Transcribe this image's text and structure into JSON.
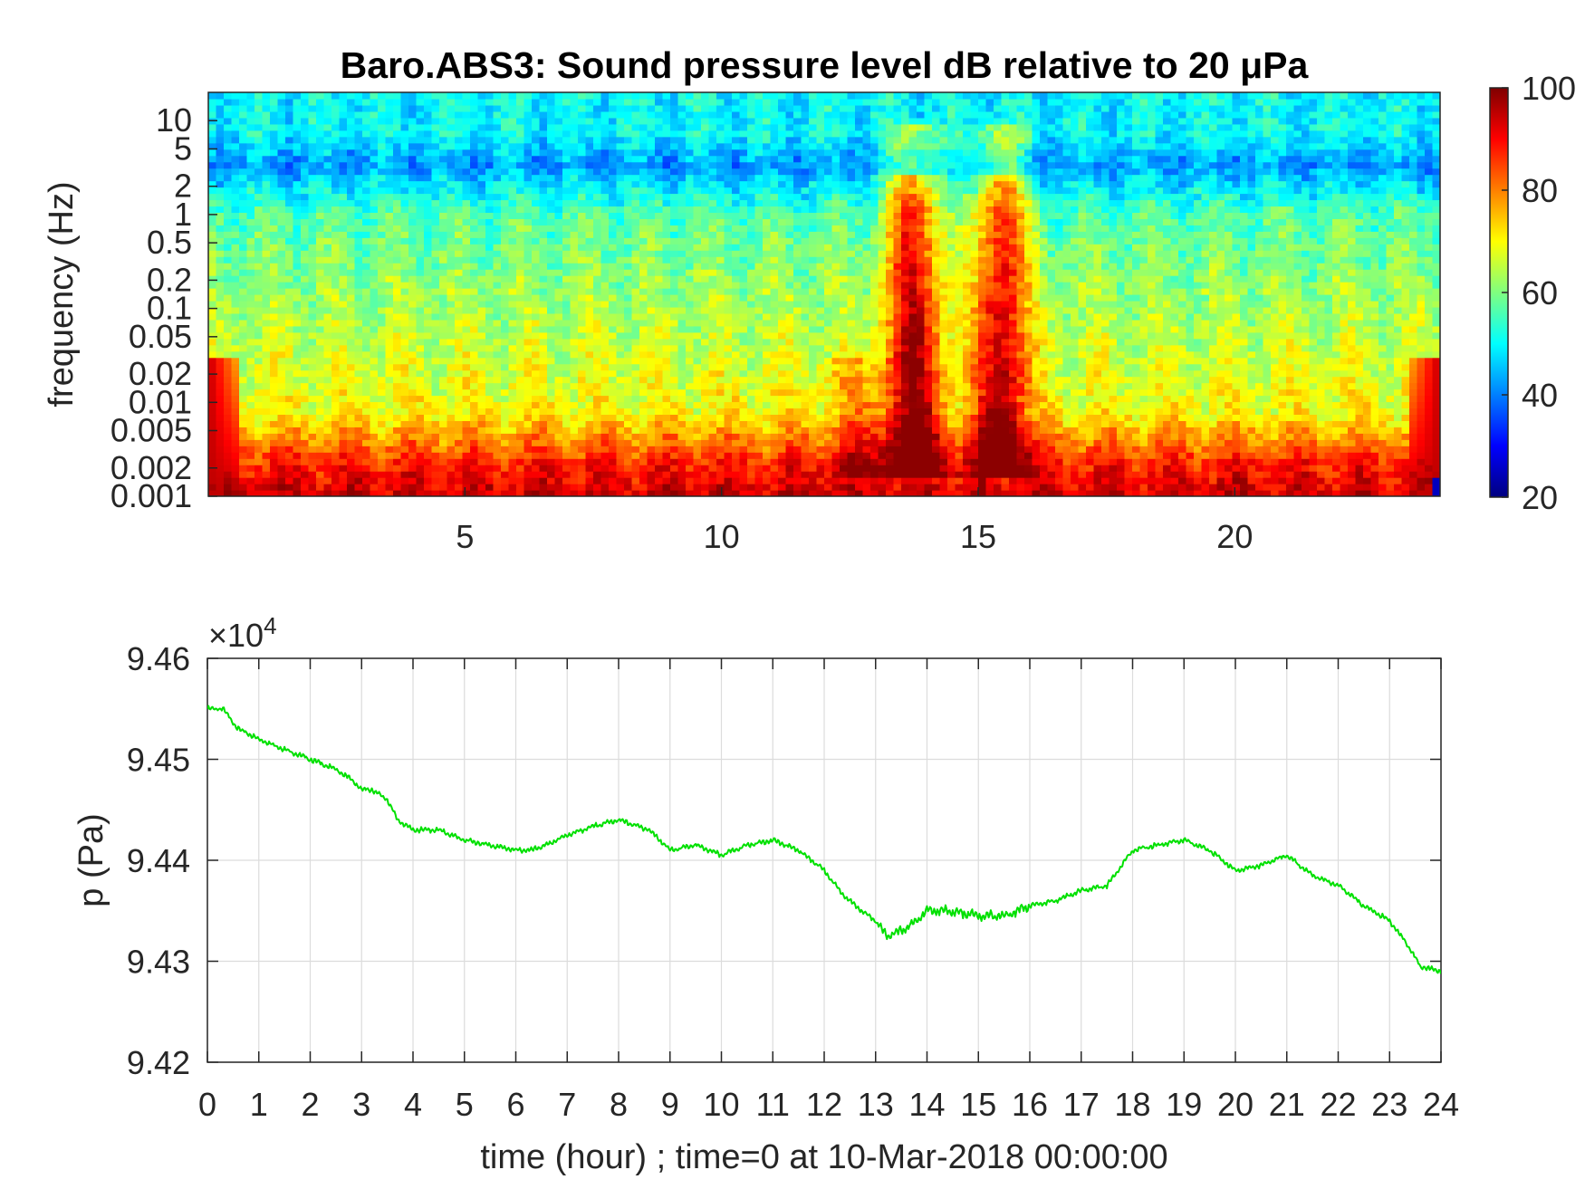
{
  "colors": {
    "pressure_line": "#00e000",
    "axis": "#262626",
    "grid": "#dcdcdc",
    "colormap": "jet"
  },
  "chart_data": [
    {
      "type": "heatmap",
      "title": "Baro.ABS3: Sound pressure level dB relative to 20 μPa",
      "xlabel": "",
      "ylabel": "frequency (Hz)",
      "xlim": [
        0,
        24
      ],
      "x_ticks": [
        "5",
        "10",
        "15",
        "20"
      ],
      "y_scale": "log",
      "ylim": [
        0.001,
        20
      ],
      "y_ticks": [
        "0.001",
        "0.002",
        "0.005",
        "0.01",
        "0.02",
        "0.05",
        "0.1",
        "0.2",
        "0.5",
        "1",
        "2",
        "5",
        "10"
      ],
      "colorbar": {
        "range": [
          20,
          100
        ],
        "ticks": [
          "20",
          "40",
          "60",
          "80",
          "100"
        ],
        "colormap": "jet"
      },
      "grid": false,
      "summary": {
        "low_freq_band_db": 90,
        "mid_freq_band_db": 70,
        "high_freq_band_db": 50,
        "strong_events_hours": [
          13.7,
          15.5
        ]
      }
    },
    {
      "type": "line",
      "title": "",
      "xlabel": "time (hour) ; time=0 at 10-Mar-2018 00:00:00",
      "ylabel": "p (Pa)",
      "y_exponent_label": "×10",
      "y_exponent_power": "4",
      "xlim": [
        0,
        24
      ],
      "ylim": [
        9.42,
        9.46
      ],
      "x_ticks": [
        "0",
        "1",
        "2",
        "3",
        "4",
        "5",
        "6",
        "7",
        "8",
        "9",
        "10",
        "11",
        "12",
        "13",
        "14",
        "15",
        "16",
        "17",
        "18",
        "19",
        "20",
        "21",
        "22",
        "23",
        "24"
      ],
      "y_ticks": [
        "9.42",
        "9.43",
        "9.44",
        "9.45",
        "9.46"
      ],
      "grid": true,
      "series": [
        {
          "color": "#00e000",
          "x": [
            0,
            0.3,
            0.6,
            1,
            1.5,
            2,
            2.5,
            2.8,
            3,
            3.2,
            3.5,
            3.7,
            4,
            4.5,
            5,
            5.5,
            6,
            6.3,
            6.6,
            7,
            7.3,
            7.6,
            8,
            8.3,
            8.6,
            9,
            9.5,
            10,
            10.5,
            11,
            11.5,
            12,
            12.3,
            12.6,
            13,
            13.2,
            13.5,
            13.8,
            14,
            14.4,
            15,
            15.5,
            16,
            16.5,
            17,
            17.5,
            18,
            18.5,
            19,
            19.5,
            20,
            20.5,
            21,
            21.5,
            22,
            22.5,
            23,
            23.3,
            23.6,
            24
          ],
          "y": [
            9.455,
            9.455,
            9.453,
            9.452,
            9.451,
            9.45,
            9.449,
            9.448,
            9.447,
            9.447,
            9.446,
            9.444,
            9.443,
            9.443,
            9.442,
            9.4415,
            9.441,
            9.441,
            9.4415,
            9.4425,
            9.443,
            9.4435,
            9.444,
            9.4435,
            9.443,
            9.441,
            9.4415,
            9.4405,
            9.4415,
            9.442,
            9.441,
            9.439,
            9.437,
            9.4355,
            9.434,
            9.4325,
            9.433,
            9.434,
            9.435,
            9.435,
            9.4345,
            9.4345,
            9.4355,
            9.436,
            9.437,
            9.4375,
            9.441,
            9.4415,
            9.442,
            9.441,
            9.439,
            9.4395,
            9.4405,
            9.4385,
            9.4375,
            9.4355,
            9.434,
            9.432,
            9.4295,
            9.429
          ]
        }
      ]
    }
  ]
}
